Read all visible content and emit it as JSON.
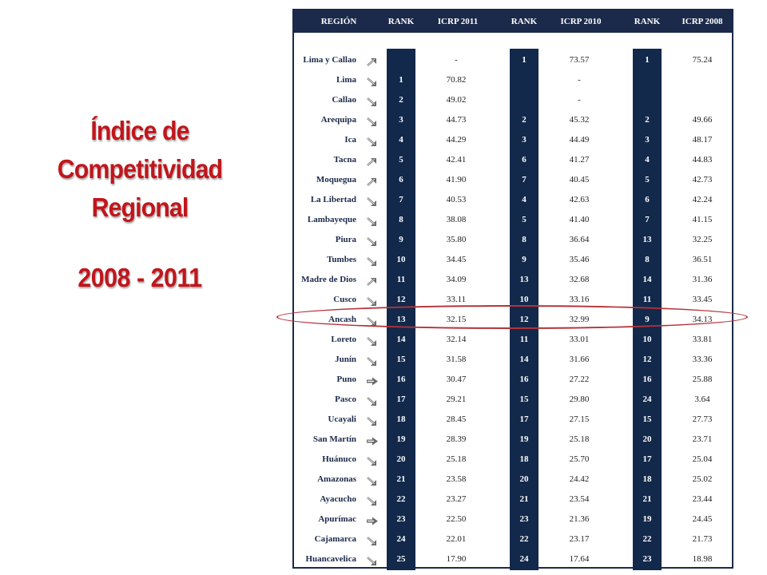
{
  "slide": {
    "title_lines": [
      "Índice de",
      "Competitividad",
      "Regional"
    ],
    "years": "2008 - 2011"
  },
  "table": {
    "headers": [
      "REGIÓN",
      "RANK",
      "ICRP 2011",
      "RANK",
      "ICRP 2010",
      "RANK",
      "ICRP 2008"
    ],
    "rows": [
      {
        "region": "Lima y Callao",
        "trend": "up-arrow-icon",
        "rank2011": "",
        "icrp2011": "-",
        "rank2010": "1",
        "icrp2010": "73.57",
        "rank2008": "1",
        "icrp2008": "75.24"
      },
      {
        "region": "Lima",
        "trend": "down-arrow-icon",
        "rank2011": "1",
        "icrp2011": "70.82",
        "rank2010": "",
        "icrp2010": "-",
        "rank2008": "",
        "icrp2008": ""
      },
      {
        "region": "Callao",
        "trend": "down-arrow-icon",
        "rank2011": "2",
        "icrp2011": "49.02",
        "rank2010": "",
        "icrp2010": "-",
        "rank2008": "",
        "icrp2008": ""
      },
      {
        "region": "Arequipa",
        "trend": "down-arrow-icon",
        "rank2011": "3",
        "icrp2011": "44.73",
        "rank2010": "2",
        "icrp2010": "45.32",
        "rank2008": "2",
        "icrp2008": "49.66"
      },
      {
        "region": "Ica",
        "trend": "down-arrow-icon",
        "rank2011": "4",
        "icrp2011": "44.29",
        "rank2010": "3",
        "icrp2010": "44.49",
        "rank2008": "3",
        "icrp2008": "48.17"
      },
      {
        "region": "Tacna",
        "trend": "up-arrow-icon",
        "rank2011": "5",
        "icrp2011": "42.41",
        "rank2010": "6",
        "icrp2010": "41.27",
        "rank2008": "4",
        "icrp2008": "44.83"
      },
      {
        "region": "Moquegua",
        "trend": "up-arrow-icon",
        "rank2011": "6",
        "icrp2011": "41.90",
        "rank2010": "7",
        "icrp2010": "40.45",
        "rank2008": "5",
        "icrp2008": "42.73"
      },
      {
        "region": "La Libertad",
        "trend": "down-arrow-icon",
        "rank2011": "7",
        "icrp2011": "40.53",
        "rank2010": "4",
        "icrp2010": "42.63",
        "rank2008": "6",
        "icrp2008": "42.24"
      },
      {
        "region": "Lambayeque",
        "trend": "down-arrow-icon",
        "rank2011": "8",
        "icrp2011": "38.08",
        "rank2010": "5",
        "icrp2010": "41.40",
        "rank2008": "7",
        "icrp2008": "41.15"
      },
      {
        "region": "Piura",
        "trend": "down-arrow-icon",
        "rank2011": "9",
        "icrp2011": "35.80",
        "rank2010": "8",
        "icrp2010": "36.64",
        "rank2008": "13",
        "icrp2008": "32.25"
      },
      {
        "region": "Tumbes",
        "trend": "down-arrow-icon",
        "rank2011": "10",
        "icrp2011": "34.45",
        "rank2010": "9",
        "icrp2010": "35.46",
        "rank2008": "8",
        "icrp2008": "36.51"
      },
      {
        "region": "Madre de Dios",
        "trend": "up-arrow-icon",
        "rank2011": "11",
        "icrp2011": "34.09",
        "rank2010": "13",
        "icrp2010": "32.68",
        "rank2008": "14",
        "icrp2008": "31.36"
      },
      {
        "region": "Cusco",
        "trend": "down-arrow-icon",
        "rank2011": "12",
        "icrp2011": "33.11",
        "rank2010": "10",
        "icrp2010": "33.16",
        "rank2008": "11",
        "icrp2008": "33.45"
      },
      {
        "region": "Ancash",
        "trend": "down-arrow-icon",
        "rank2011": "13",
        "icrp2011": "32.15",
        "rank2010": "12",
        "icrp2010": "32.99",
        "rank2008": "9",
        "icrp2008": "34.13"
      },
      {
        "region": "Loreto",
        "trend": "down-arrow-icon",
        "rank2011": "14",
        "icrp2011": "32.14",
        "rank2010": "11",
        "icrp2010": "33.01",
        "rank2008": "10",
        "icrp2008": "33.81"
      },
      {
        "region": "Junín",
        "trend": "down-arrow-icon",
        "rank2011": "15",
        "icrp2011": "31.58",
        "rank2010": "14",
        "icrp2010": "31.66",
        "rank2008": "12",
        "icrp2008": "33.36"
      },
      {
        "region": "Puno",
        "trend": "right-arrow-icon",
        "rank2011": "16",
        "icrp2011": "30.47",
        "rank2010": "16",
        "icrp2010": "27.22",
        "rank2008": "16",
        "icrp2008": "25.88"
      },
      {
        "region": "Pasco",
        "trend": "down-arrow-icon",
        "rank2011": "17",
        "icrp2011": "29.21",
        "rank2010": "15",
        "icrp2010": "29.80",
        "rank2008": "24",
        "icrp2008": "3.64"
      },
      {
        "region": "Ucayali",
        "trend": "down-arrow-icon",
        "rank2011": "18",
        "icrp2011": "28.45",
        "rank2010": "17",
        "icrp2010": "27.15",
        "rank2008": "15",
        "icrp2008": "27.73"
      },
      {
        "region": "San Martín",
        "trend": "right-arrow-icon",
        "rank2011": "19",
        "icrp2011": "28.39",
        "rank2010": "19",
        "icrp2010": "25.18",
        "rank2008": "20",
        "icrp2008": "23.71"
      },
      {
        "region": "Huánuco",
        "trend": "down-arrow-icon",
        "rank2011": "20",
        "icrp2011": "25.18",
        "rank2010": "18",
        "icrp2010": "25.70",
        "rank2008": "17",
        "icrp2008": "25.04"
      },
      {
        "region": "Amazonas",
        "trend": "down-arrow-icon",
        "rank2011": "21",
        "icrp2011": "23.58",
        "rank2010": "20",
        "icrp2010": "24.42",
        "rank2008": "18",
        "icrp2008": "25.02"
      },
      {
        "region": "Ayacucho",
        "trend": "down-arrow-icon",
        "rank2011": "22",
        "icrp2011": "23.27",
        "rank2010": "21",
        "icrp2010": "23.54",
        "rank2008": "21",
        "icrp2008": "23.44"
      },
      {
        "region": "Apurímac",
        "trend": "right-arrow-icon",
        "rank2011": "23",
        "icrp2011": "22.50",
        "rank2010": "23",
        "icrp2010": "21.36",
        "rank2008": "19",
        "icrp2008": "24.45"
      },
      {
        "region": "Cajamarca",
        "trend": "down-arrow-icon",
        "rank2011": "24",
        "icrp2011": "22.01",
        "rank2010": "22",
        "icrp2010": "23.17",
        "rank2008": "22",
        "icrp2008": "21.73"
      },
      {
        "region": "Huancavelica",
        "trend": "down-arrow-icon",
        "rank2011": "25",
        "icrp2011": "17.90",
        "rank2010": "24",
        "icrp2010": "17.64",
        "rank2008": "23",
        "icrp2008": "18.98"
      }
    ]
  },
  "highlight": {
    "region": "Ancash",
    "color": "#b5333a"
  },
  "colors": {
    "title": "#c0161c",
    "header_bg": "#1b2a4a",
    "rank_band": "#13294b"
  }
}
